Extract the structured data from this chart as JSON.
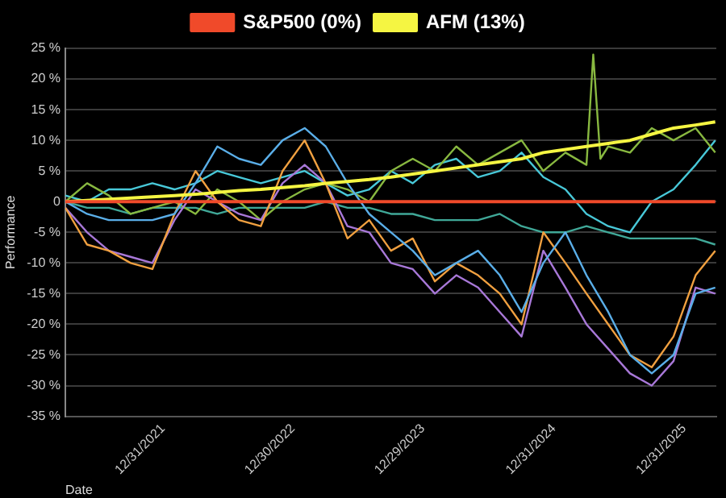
{
  "chart_data": {
    "type": "line",
    "xlabel": "Date",
    "ylabel": "Performance",
    "x": [
      "2021-04-01",
      "2021-06-01",
      "2021-08-01",
      "2021-10-01",
      "2021-12-01",
      "2022-02-01",
      "2022-04-01",
      "2022-06-01",
      "2022-08-01",
      "2022-10-01",
      "2022-12-01",
      "2023-02-01",
      "2023-04-01",
      "2023-06-01",
      "2023-08-01",
      "2023-10-01",
      "2023-12-01",
      "2024-02-01",
      "2024-04-01",
      "2024-06-01",
      "2024-08-01",
      "2024-10-01",
      "2024-12-01",
      "2025-02-01",
      "2025-04-01",
      "2025-06-01",
      "2025-08-01",
      "2025-10-01",
      "2025-12-01",
      "2026-02-01",
      "2026-03-28"
    ],
    "xlim": [
      "2021-04-01",
      "2026-03-31"
    ],
    "xticks": [
      {
        "value": "2021-12-31",
        "label": "12/31/2021"
      },
      {
        "value": "2022-12-30",
        "label": "12/30/2022"
      },
      {
        "value": "2023-12-29",
        "label": "12/29/2023"
      },
      {
        "value": "2024-12-31",
        "label": "12/31/2024"
      },
      {
        "value": "2025-12-31",
        "label": "12/31/2025"
      }
    ],
    "ylim": [
      -35,
      25
    ],
    "yticks": [
      {
        "value": -35,
        "label": "-35 %"
      },
      {
        "value": -30,
        "label": "-30 %"
      },
      {
        "value": -25,
        "label": "-25 %"
      },
      {
        "value": -20,
        "label": "-20 %"
      },
      {
        "value": -15,
        "label": "-15 %"
      },
      {
        "value": -10,
        "label": "-10 %"
      },
      {
        "value": -5,
        "label": "-5 %"
      },
      0,
      {
        "value": 5,
        "label": "5 %"
      },
      {
        "value": 10,
        "label": "10 %"
      },
      {
        "value": 15,
        "label": "15 %"
      },
      {
        "value": 20,
        "label": "20 %"
      },
      {
        "value": 25,
        "label": "25 %"
      }
    ],
    "grid": "y",
    "legend": "top",
    "marker": "none",
    "line_style": "solid",
    "series": [
      {
        "name": "S&P500 (0%)",
        "color": "#f04a2a",
        "values": [
          0,
          0,
          0,
          0,
          0,
          0,
          0,
          0,
          0,
          0,
          0,
          0,
          0,
          0,
          0,
          0,
          0,
          0,
          0,
          0,
          0,
          0,
          0,
          0,
          0,
          0,
          0,
          0,
          0,
          0,
          0
        ]
      },
      {
        "name": "AFM (13%)",
        "color": "#f5f542",
        "values": [
          0,
          0.2,
          0.4,
          0.6,
          0.8,
          1,
          1.2,
          1.5,
          1.8,
          2,
          2.3,
          2.6,
          3,
          3.3,
          3.6,
          4,
          4.5,
          5,
          5.5,
          6,
          6.5,
          7,
          8,
          8.5,
          9,
          9.5,
          10,
          11,
          12,
          12.5,
          13
        ]
      },
      {
        "color": "#5aaee8",
        "values": [
          0,
          -2,
          -3,
          -3,
          -3,
          -2,
          3,
          9,
          7,
          6,
          10,
          12,
          9,
          3,
          -2,
          -5,
          -8,
          -12,
          -10,
          -8,
          -12,
          -18,
          -10,
          -5,
          -12,
          -18,
          -25,
          -28,
          -25,
          -15,
          -14
        ]
      },
      {
        "color": "#f0a040",
        "values": [
          -1,
          -7,
          -8,
          -10,
          -11,
          -2,
          5,
          0,
          -3,
          -4,
          5,
          10,
          3,
          -6,
          -3,
          -8,
          -6,
          -13,
          -10,
          -12,
          -15,
          -20,
          -5,
          -10,
          -15,
          -20,
          -25,
          -27,
          -22,
          -12,
          -8
        ]
      },
      {
        "color": "#a878d8",
        "values": [
          -1,
          -5,
          -8,
          -9,
          -10,
          -3,
          2,
          0,
          -2,
          -3,
          3,
          6,
          3,
          -4,
          -5,
          -10,
          -11,
          -15,
          -12,
          -14,
          -18,
          -22,
          -8,
          -14,
          -20,
          -24,
          -28,
          -30,
          -26,
          -14,
          -15
        ]
      },
      {
        "color": "#88b840",
        "x": [
          "2021-04-01",
          "2021-06-01",
          "2021-08-01",
          "2021-10-01",
          "2021-12-01",
          "2022-02-01",
          "2022-04-01",
          "2022-06-01",
          "2022-08-01",
          "2022-10-01",
          "2022-12-01",
          "2023-02-01",
          "2023-04-01",
          "2023-06-01",
          "2023-08-01",
          "2023-10-01",
          "2023-12-01",
          "2024-02-01",
          "2024-04-01",
          "2024-06-01",
          "2024-08-01",
          "2024-10-01",
          "2024-12-01",
          "2025-02-01",
          "2025-04-01",
          "2025-04-20",
          "2025-05-10",
          "2025-06-01",
          "2025-08-01",
          "2025-10-01",
          "2025-12-01",
          "2026-02-01",
          "2026-03-28"
        ],
        "values": [
          0,
          3,
          1,
          -2,
          -1,
          0,
          -2,
          2,
          0,
          -3,
          0,
          2,
          3,
          2,
          0,
          5,
          7,
          5,
          9,
          6,
          8,
          10,
          5,
          8,
          6,
          24,
          7,
          9,
          8,
          12,
          10,
          12,
          8
        ]
      },
      {
        "color": "#48c8d8",
        "values": [
          1,
          0,
          2,
          2,
          3,
          2,
          3,
          5,
          4,
          3,
          4,
          5,
          3,
          1,
          2,
          5,
          3,
          6,
          7,
          4,
          5,
          8,
          4,
          2,
          -2,
          -4,
          -5,
          0,
          2,
          6,
          10
        ]
      },
      {
        "color": "#40a898",
        "values": [
          0,
          -1,
          -1,
          -2,
          -1,
          -1,
          -1,
          -2,
          -1,
          -1,
          -1,
          -1,
          0,
          -1,
          -1,
          -2,
          -2,
          -3,
          -3,
          -3,
          -2,
          -4,
          -5,
          -5,
          -4,
          -5,
          -6,
          -6,
          -6,
          -6,
          -7
        ]
      }
    ]
  }
}
